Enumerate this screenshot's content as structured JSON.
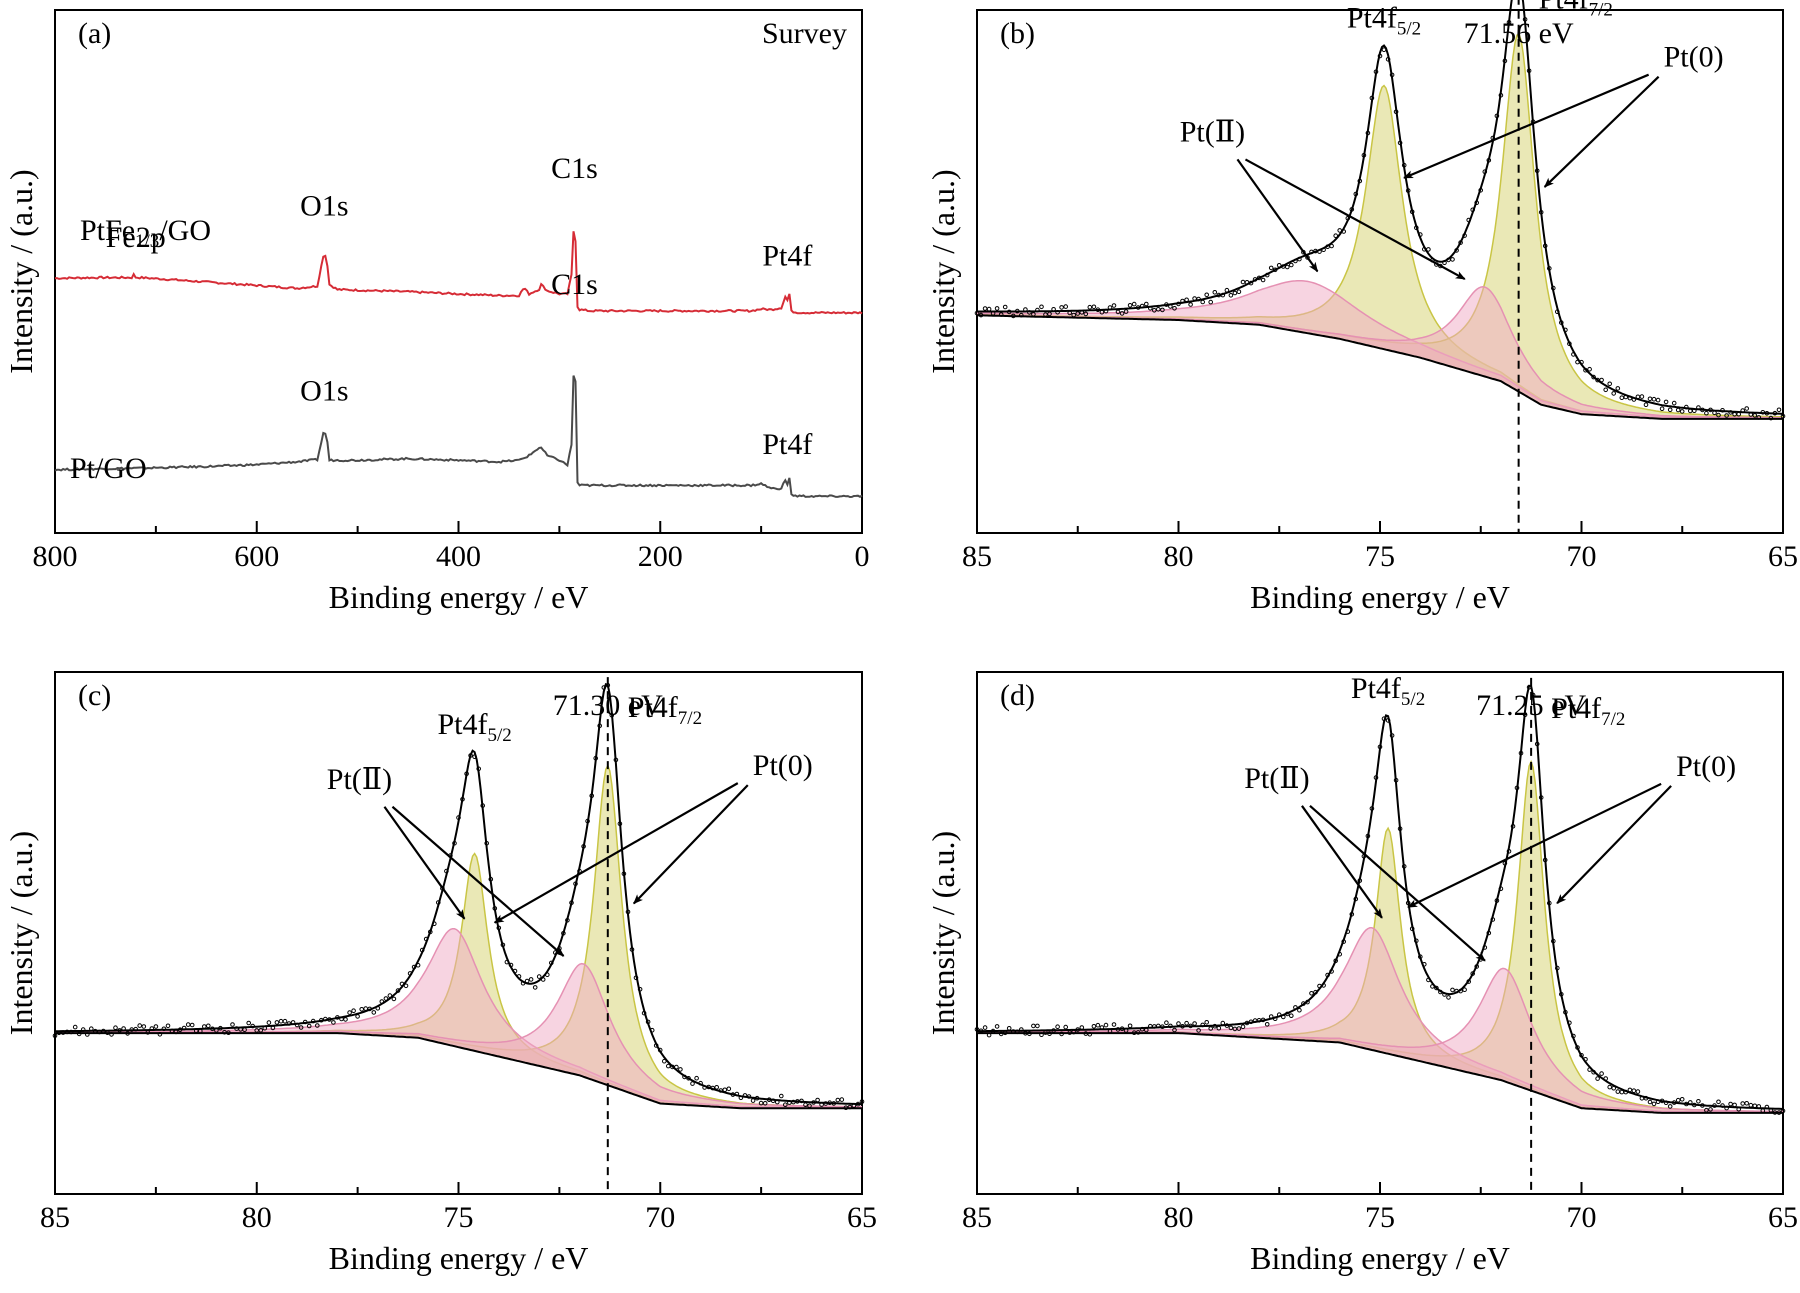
{
  "chart_data": [
    {
      "panel": "(a)",
      "type": "line",
      "corner_text": "Survey",
      "xlabel": "Binding energy / eV",
      "ylabel": "Intensity / (a.u.)",
      "xlim": [
        800,
        0
      ],
      "xticks": [
        "800",
        "600",
        "400",
        "200",
        "0"
      ],
      "ylim": [
        0,
        1
      ],
      "series": [
        {
          "name": "PtFe1/3/GO",
          "color": "#d62c36",
          "x": [
            800,
            760,
            724,
            723,
            721,
            700,
            650,
            600,
            560,
            540,
            534,
            531,
            528,
            520,
            500,
            450,
            400,
            360,
            340,
            335,
            330,
            320,
            318,
            312,
            300,
            292,
            288,
            286,
            285,
            284,
            283,
            282,
            280,
            270,
            250,
            200,
            150,
            110,
            100,
            90,
            80,
            75,
            74,
            72,
            71,
            70,
            65,
            50,
            30,
            0
          ],
          "values": [
            0.78,
            0.782,
            0.782,
            0.8,
            0.783,
            0.779,
            0.768,
            0.757,
            0.748,
            0.755,
            0.851,
            0.852,
            0.76,
            0.744,
            0.742,
            0.737,
            0.73,
            0.725,
            0.725,
            0.75,
            0.73,
            0.745,
            0.76,
            0.74,
            0.73,
            0.73,
            0.79,
            0.93,
            0.975,
            0.9,
            0.75,
            0.69,
            0.68,
            0.676,
            0.676,
            0.676,
            0.676,
            0.676,
            0.682,
            0.68,
            0.686,
            0.73,
            0.71,
            0.73,
            0.69,
            0.675,
            0.671,
            0.67,
            0.67,
            0.67
          ],
          "label": "PtFe",
          "label_sub": "1/3",
          "label_post": "/GO"
        },
        {
          "name": "Pt/GO",
          "color": "#4a4a4a",
          "x": [
            800,
            750,
            700,
            650,
            600,
            560,
            540,
            534,
            531,
            528,
            520,
            500,
            450,
            400,
            360,
            340,
            330,
            320,
            318,
            312,
            300,
            292,
            288,
            286,
            285,
            284,
            283,
            282,
            280,
            250,
            200,
            150,
            110,
            100,
            90,
            80,
            75,
            74,
            72,
            71,
            70,
            65,
            50,
            30,
            0
          ],
          "values": [
            0.17,
            0.173,
            0.176,
            0.18,
            0.186,
            0.195,
            0.202,
            0.285,
            0.286,
            0.2,
            0.2,
            0.2,
            0.205,
            0.2,
            0.195,
            0.2,
            0.215,
            0.24,
            0.24,
            0.215,
            0.2,
            0.185,
            0.25,
            0.47,
            0.65,
            0.45,
            0.25,
            0.13,
            0.12,
            0.12,
            0.12,
            0.12,
            0.12,
            0.125,
            0.11,
            0.11,
            0.145,
            0.12,
            0.145,
            0.1,
            0.09,
            0.086,
            0.085,
            0.085,
            0.085
          ],
          "label": "Pt/GO"
        }
      ],
      "annotations": [
        {
          "text": "Fe2p",
          "x": 720,
          "y": 0.88
        },
        {
          "text": "O1s",
          "x": 533,
          "y": 0.98
        },
        {
          "text": "C1s",
          "x": 285,
          "y": 1.1
        },
        {
          "text": "Pt4f",
          "x": 74,
          "y": 0.82
        },
        {
          "text": "O1s",
          "x": 533,
          "y": 0.39
        },
        {
          "text": "C1s",
          "x": 285,
          "y": 0.73
        },
        {
          "text": "Pt4f",
          "x": 74,
          "y": 0.22
        }
      ]
    },
    {
      "panel": "(b)",
      "type": "area",
      "xlabel": "Binding energy / eV",
      "ylabel": "Intensity / (a.u.)",
      "xlim": [
        85,
        65
      ],
      "xticks": [
        "85",
        "80",
        "75",
        "70",
        "65"
      ],
      "ylim": [
        0,
        1
      ],
      "peak_label": "71.56 eV",
      "peak_position": 71.56,
      "background": {
        "x": [
          85,
          80,
          78,
          76,
          74,
          72,
          71,
          70,
          68,
          65
        ],
        "values": [
          0.42,
          0.41,
          0.4,
          0.37,
          0.33,
          0.28,
          0.23,
          0.21,
          0.2,
          0.2
        ]
      },
      "components": [
        {
          "name": "Pt(0) 4f5/2",
          "kind": "Pt0",
          "center": 74.9,
          "height": 0.56,
          "width": 0.55
        },
        {
          "name": "Pt(0) 4f7/2",
          "kind": "Pt0",
          "center": 71.56,
          "height": 0.76,
          "width": 0.5
        },
        {
          "name": "Pt(II) 4f5/2",
          "kind": "Pt2",
          "center": 76.8,
          "height": 0.11,
          "width": 1.7
        },
        {
          "name": "Pt(II) 4f7/2",
          "kind": "Pt2",
          "center": 72.4,
          "height": 0.19,
          "width": 0.85
        }
      ],
      "labels": {
        "pt4f52_main": "Pt4f",
        "pt4f52_sub": "5/2",
        "pt4f72_main": "Pt4f",
        "pt4f72_sub": "7/2",
        "pt0": "Pt(0)",
        "pt2": "Pt(Ⅱ)"
      }
    },
    {
      "panel": "(c)",
      "type": "area",
      "xlabel": "Binding energy / eV",
      "ylabel": "Intensity / (a.u.)",
      "xlim": [
        85,
        65
      ],
      "xticks": [
        "85",
        "80",
        "75",
        "70",
        "65"
      ],
      "ylim": [
        0,
        1
      ],
      "peak_label": "71.30 eV",
      "peak_position": 71.3,
      "background": {
        "x": [
          85,
          80,
          78,
          76,
          74,
          72,
          71,
          70,
          68,
          65
        ],
        "values": [
          0.3,
          0.3,
          0.3,
          0.29,
          0.25,
          0.21,
          0.18,
          0.15,
          0.14,
          0.14
        ]
      },
      "components": [
        {
          "name": "Pt(0) 4f5/2",
          "kind": "Pt0",
          "center": 74.6,
          "height": 0.42,
          "width": 0.4
        },
        {
          "name": "Pt(0) 4f7/2",
          "kind": "Pt0",
          "center": 71.3,
          "height": 0.68,
          "width": 0.42
        },
        {
          "name": "Pt(II) 4f5/2",
          "kind": "Pt2",
          "center": 75.1,
          "height": 0.25,
          "width": 0.85
        },
        {
          "name": "Pt(II) 4f7/2",
          "kind": "Pt2",
          "center": 71.9,
          "height": 0.24,
          "width": 0.8
        }
      ],
      "labels": {
        "pt4f52_main": "Pt4f",
        "pt4f52_sub": "5/2",
        "pt4f72_main": "Pt4f",
        "pt4f72_sub": "7/2",
        "pt0": "Pt(0)",
        "pt2": "Pt(Ⅱ)"
      }
    },
    {
      "panel": "(d)",
      "type": "area",
      "xlabel": "Binding energy / eV",
      "ylabel": "Intensity / (a.u.)",
      "xlim": [
        85,
        65
      ],
      "xticks": [
        "85",
        "80",
        "75",
        "70",
        "65"
      ],
      "ylim": [
        0,
        1
      ],
      "peak_label": "71.25 eV",
      "peak_position": 71.25,
      "background": {
        "x": [
          85,
          80,
          78,
          76,
          74,
          72,
          71,
          70,
          68,
          65
        ],
        "values": [
          0.3,
          0.3,
          0.29,
          0.28,
          0.24,
          0.2,
          0.17,
          0.14,
          0.13,
          0.13
        ]
      },
      "components": [
        {
          "name": "Pt(0) 4f5/2",
          "kind": "Pt0",
          "center": 74.8,
          "height": 0.48,
          "width": 0.38
        },
        {
          "name": "Pt(0) 4f7/2",
          "kind": "Pt0",
          "center": 71.25,
          "height": 0.7,
          "width": 0.4
        },
        {
          "name": "Pt(II) 4f5/2",
          "kind": "Pt2",
          "center": 75.2,
          "height": 0.26,
          "width": 0.85
        },
        {
          "name": "Pt(II) 4f7/2",
          "kind": "Pt2",
          "center": 71.9,
          "height": 0.24,
          "width": 0.8
        }
      ],
      "labels": {
        "pt4f52_main": "Pt4f",
        "pt4f52_sub": "5/2",
        "pt4f72_main": "Pt4f",
        "pt4f72_sub": "7/2",
        "pt0": "Pt(0)",
        "pt2": "Pt(Ⅱ)"
      }
    }
  ],
  "colors": {
    "pt0_fill": "#d9d67a",
    "pt0_stroke": "#c9c545",
    "pt2_fill": "#f0a9c4",
    "pt2_stroke": "#e591b3",
    "envelope": "#000000"
  }
}
